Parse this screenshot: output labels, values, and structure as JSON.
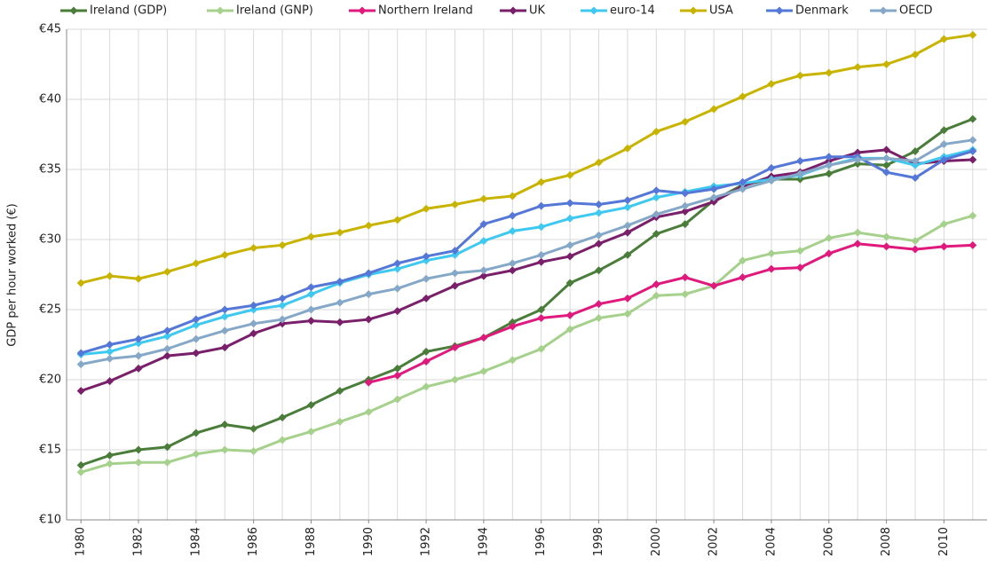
{
  "chart_data": {
    "type": "line",
    "y_label": "GDP per hour worked (€)",
    "x": [
      1980,
      1981,
      1982,
      1983,
      1984,
      1985,
      1986,
      1987,
      1988,
      1989,
      1990,
      1991,
      1992,
      1993,
      1994,
      1995,
      1996,
      1997,
      1998,
      1999,
      2000,
      2001,
      2002,
      2003,
      2004,
      2005,
      2006,
      2007,
      2008,
      2009,
      2010,
      2011
    ],
    "xlim": [
      1979.5,
      2011.5
    ],
    "xticks": [
      1980,
      1982,
      1984,
      1986,
      1988,
      1990,
      1992,
      1994,
      1996,
      1998,
      2000,
      2002,
      2004,
      2006,
      2008,
      2010
    ],
    "ylim": [
      10,
      45
    ],
    "yticks": [
      {
        "value": 10,
        "label": "€10"
      },
      {
        "value": 15,
        "label": "€15"
      },
      {
        "value": 20,
        "label": "€20"
      },
      {
        "value": 25,
        "label": "€25"
      },
      {
        "value": 30,
        "label": "€30"
      },
      {
        "value": 35,
        "label": "€35"
      },
      {
        "value": 40,
        "label": "€40"
      },
      {
        "value": 45,
        "label": "€45"
      }
    ],
    "grid": true,
    "legend": "top",
    "series": [
      {
        "name": "Ireland (GDP)",
        "color": "#4a7d3a",
        "values": [
          13.9,
          14.6,
          15.0,
          15.2,
          16.2,
          16.8,
          16.5,
          17.3,
          18.2,
          19.2,
          20.0,
          20.8,
          22.0,
          22.4,
          23.0,
          24.1,
          25.0,
          26.9,
          27.8,
          28.9,
          30.4,
          31.1,
          32.8,
          33.9,
          34.3,
          34.3,
          34.7,
          35.4,
          35.3,
          36.3,
          37.8,
          38.6
        ]
      },
      {
        "name": "Ireland (GNP)",
        "color": "#a6d18c",
        "values": [
          13.4,
          14.0,
          14.1,
          14.1,
          14.7,
          15.0,
          14.9,
          15.7,
          16.3,
          17.0,
          17.7,
          18.6,
          19.5,
          20.0,
          20.6,
          21.4,
          22.2,
          23.6,
          24.4,
          24.7,
          26.0,
          26.1,
          26.7,
          28.5,
          29.0,
          29.2,
          30.1,
          30.5,
          30.2,
          29.9,
          31.1,
          31.7
        ]
      },
      {
        "name": "Northern Ireland",
        "color": "#e0197d",
        "values": [
          null,
          null,
          null,
          null,
          null,
          null,
          null,
          null,
          null,
          null,
          19.8,
          20.3,
          21.3,
          22.3,
          23.0,
          23.8,
          24.4,
          24.6,
          25.4,
          25.8,
          26.8,
          27.3,
          26.7,
          27.3,
          27.9,
          28.0,
          29.0,
          29.7,
          29.5,
          29.3,
          29.5,
          29.6
        ]
      },
      {
        "name": "UK",
        "color": "#7a1f6a",
        "values": [
          19.2,
          19.9,
          20.8,
          21.7,
          21.9,
          22.3,
          23.3,
          24.0,
          24.2,
          24.1,
          24.3,
          24.9,
          25.8,
          26.7,
          27.4,
          27.8,
          28.4,
          28.8,
          29.7,
          30.5,
          31.6,
          32.0,
          32.7,
          33.8,
          34.5,
          34.8,
          35.6,
          36.2,
          36.4,
          35.4,
          35.6,
          35.7
        ]
      },
      {
        "name": "euro-14",
        "color": "#3fc8f0",
        "values": [
          21.8,
          22.0,
          22.6,
          23.1,
          23.9,
          24.5,
          25.0,
          25.3,
          26.1,
          26.9,
          27.5,
          27.9,
          28.5,
          28.9,
          29.9,
          30.6,
          30.9,
          31.5,
          31.9,
          32.3,
          33.0,
          33.4,
          33.8,
          34.0,
          34.3,
          34.6,
          35.3,
          35.8,
          35.8,
          35.3,
          35.9,
          36.4
        ]
      },
      {
        "name": "USA",
        "color": "#c8b400",
        "values": [
          26.9,
          27.4,
          27.2,
          27.7,
          28.3,
          28.9,
          29.4,
          29.6,
          30.2,
          30.5,
          31.0,
          31.4,
          32.2,
          32.5,
          32.9,
          33.1,
          34.1,
          34.6,
          35.5,
          36.5,
          37.7,
          38.4,
          39.3,
          40.2,
          41.1,
          41.7,
          41.9,
          42.3,
          42.5,
          43.2,
          44.3,
          44.6
        ]
      },
      {
        "name": "Denmark",
        "color": "#5578d8",
        "values": [
          21.9,
          22.5,
          22.9,
          23.5,
          24.3,
          25.0,
          25.3,
          25.8,
          26.6,
          27.0,
          27.6,
          28.3,
          28.8,
          29.2,
          31.1,
          31.7,
          32.4,
          32.6,
          32.5,
          32.8,
          33.5,
          33.3,
          33.6,
          34.1,
          35.1,
          35.6,
          35.9,
          35.9,
          34.8,
          34.4,
          35.7,
          36.3
        ]
      },
      {
        "name": "OECD",
        "color": "#86a8c8",
        "values": [
          21.1,
          21.5,
          21.7,
          22.2,
          22.9,
          23.5,
          24.0,
          24.3,
          25.0,
          25.5,
          26.1,
          26.5,
          27.2,
          27.6,
          27.8,
          28.3,
          28.9,
          29.6,
          30.3,
          31.0,
          31.8,
          32.4,
          33.0,
          33.6,
          34.2,
          34.7,
          35.3,
          35.7,
          35.8,
          35.6,
          36.8,
          37.1
        ]
      }
    ]
  }
}
